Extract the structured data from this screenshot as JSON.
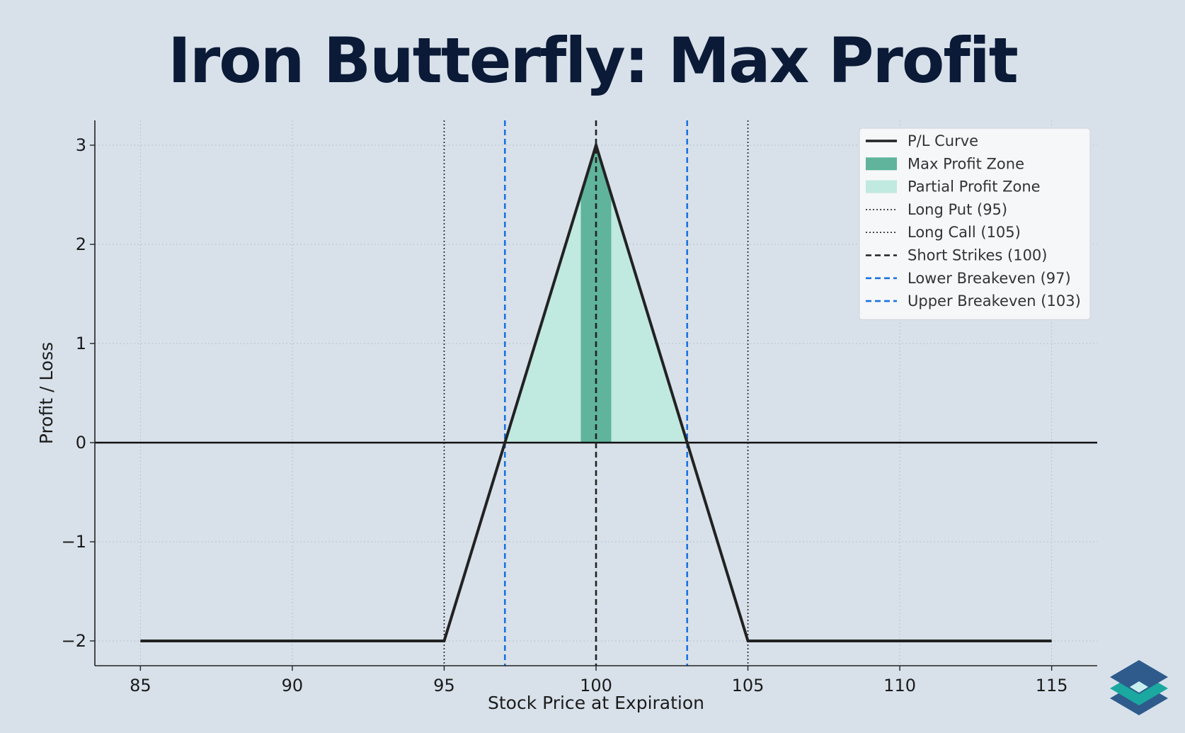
{
  "chart_data": {
    "type": "line",
    "title": "Iron Butterfly: Max Profit",
    "xlabel": "Stock Price at Expiration",
    "ylabel": "Profit / Loss",
    "xlim": [
      83.5,
      116.5
    ],
    "ylim": [
      -2.25,
      3.25
    ],
    "xticks": [
      85,
      90,
      95,
      100,
      105,
      110,
      115
    ],
    "yticks": [
      3,
      2,
      1,
      0,
      -1,
      -2
    ],
    "ytick_labels": [
      "3",
      "2",
      "1",
      "0",
      "−1",
      "−2"
    ],
    "grid": true,
    "legend_position": "top-right",
    "series": [
      {
        "name": "P/L Curve",
        "kind": "line",
        "color": "#222222",
        "x": [
          85,
          95,
          100,
          105,
          115
        ],
        "y": [
          -2,
          -2,
          3,
          -2,
          -2
        ]
      }
    ],
    "zones": [
      {
        "name": "Max Profit Zone",
        "x": [
          99.5,
          100.5
        ],
        "color": "#5fb49b"
      },
      {
        "name": "Partial Profit Zone",
        "x": [
          97,
          103
        ],
        "color": "#c0e9df"
      }
    ],
    "vlines": [
      {
        "name": "Long Put (95)",
        "x": 95,
        "style": "dotted",
        "color": "#222222"
      },
      {
        "name": "Long Call (105)",
        "x": 105,
        "style": "dotted",
        "color": "#222222"
      },
      {
        "name": "Short Strikes (100)",
        "x": 100,
        "style": "dashed",
        "color": "#222222"
      },
      {
        "name": "Lower Breakeven (97)",
        "x": 97,
        "style": "dashed",
        "color": "#1a73e0"
      },
      {
        "name": "Upper Breakeven (103)",
        "x": 103,
        "style": "dashed",
        "color": "#1a73e0"
      }
    ],
    "hline": {
      "y": 0,
      "color": "#111111"
    },
    "legend": [
      {
        "label": "P/L Curve",
        "kind": "line",
        "color": "#222222",
        "style": "solid"
      },
      {
        "label": "Max Profit Zone",
        "kind": "patch",
        "color": "#5fb49b"
      },
      {
        "label": "Partial Profit Zone",
        "kind": "patch",
        "color": "#c0e9df"
      },
      {
        "label": "Long Put (95)",
        "kind": "line",
        "color": "#222222",
        "style": "dotted"
      },
      {
        "label": "Long Call (105)",
        "kind": "line",
        "color": "#222222",
        "style": "dotted"
      },
      {
        "label": "Short Strikes (100)",
        "kind": "line",
        "color": "#222222",
        "style": "dashed"
      },
      {
        "label": "Lower Breakeven (97)",
        "kind": "line",
        "color": "#1a73e0",
        "style": "dashed"
      },
      {
        "label": "Upper Breakeven (103)",
        "kind": "line",
        "color": "#1a73e0",
        "style": "dashed"
      }
    ]
  },
  "colors": {
    "background": "#d8e1ea",
    "title": "#0b1a36",
    "logo_dark": "#2e5b8c",
    "logo_teal": "#1aa8a0",
    "logo_light": "#c8eef0"
  },
  "logo": {
    "icon": "stacked-layers-logo-icon"
  }
}
